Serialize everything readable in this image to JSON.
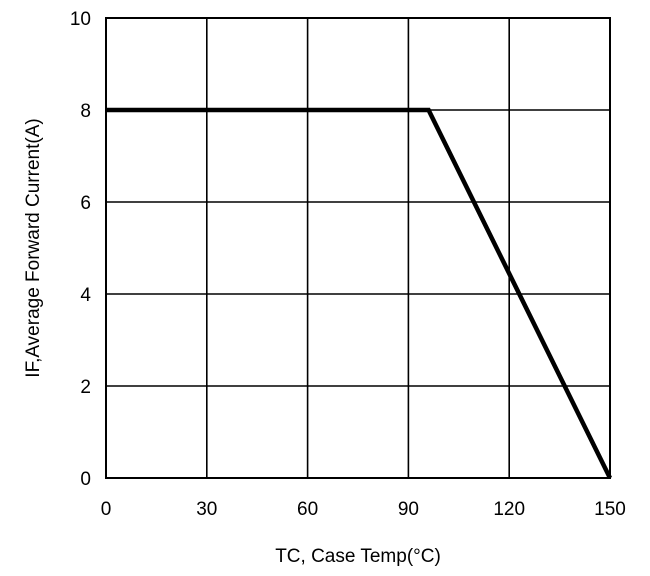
{
  "chart_data": {
    "type": "line",
    "title": "",
    "xlabel": "TC, Case Temp(°C)",
    "ylabel": "IF,Average Forward Current(A)",
    "xlim": [
      0,
      150
    ],
    "ylim": [
      0,
      10
    ],
    "xticks": [
      0,
      30,
      60,
      90,
      120,
      150
    ],
    "yticks": [
      0,
      2,
      4,
      6,
      8,
      10
    ],
    "grid": true,
    "legend": "none",
    "series": [
      {
        "x": [
          0,
          96,
          150
        ],
        "y": [
          8,
          8,
          0
        ],
        "color": "#000000"
      }
    ]
  }
}
